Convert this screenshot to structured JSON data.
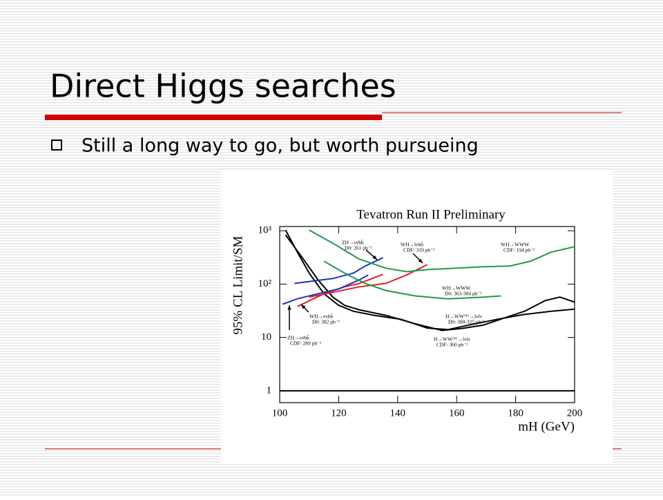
{
  "slide": {
    "title": "Direct Higgs searches",
    "bullet": "Still a long way to go, but worth pursueing"
  },
  "chart_data": {
    "type": "line",
    "title": "Tevatron Run II Preliminary",
    "ylabel": "95% CL Limit/SM",
    "xlabel": "mH (GeV)",
    "log_y": true,
    "xlim": [
      100,
      200
    ],
    "ylim": [
      0.6,
      1200
    ],
    "xticks": [
      100,
      120,
      140,
      160,
      180,
      200
    ],
    "yticks": [
      1,
      10,
      {
        "value": 100,
        "label": "10²"
      },
      {
        "value": 1000,
        "label": "10³"
      }
    ],
    "series": [
      {
        "color": "#000000",
        "annotation": [
          "H→WW⁽*⁾→lνlν",
          "CDF: 360 pb⁻¹"
        ],
        "x": [
          102,
          106,
          110,
          115,
          120,
          125,
          132,
          141,
          150,
          157,
          164,
          174,
          183,
          192,
          200
        ],
        "values": [
          1030,
          396,
          161,
          66,
          40,
          31,
          26,
          22,
          15,
          14,
          17,
          22,
          27,
          31,
          34
        ]
      },
      {
        "color": "#000000",
        "annotation": [
          "H→WW⁽*⁾→lνlν",
          "D0: 300-325 pb⁻¹"
        ],
        "x": [
          102,
          108,
          113,
          118,
          122,
          127,
          136,
          146,
          155,
          162,
          169,
          176,
          183,
          190,
          195,
          200
        ],
        "values": [
          836,
          294,
          120,
          57,
          40,
          33,
          26,
          18,
          13.5,
          14.8,
          17,
          23,
          31,
          49,
          57,
          46
        ]
      },
      {
        "color": "#e02020",
        "annotation": [
          "WH→eνbb̄",
          "D0: 382 pb⁻¹"
        ],
        "x": [
          106,
          115,
          122,
          127,
          135
        ],
        "values": [
          38,
          66,
          89,
          103,
          152
        ]
      },
      {
        "color": "#e02020",
        "annotation": [
          "WH→lνbb̄",
          "CDF: 319 pb⁻¹"
        ],
        "x": [
          110,
          118,
          127,
          136,
          143,
          150
        ],
        "values": [
          57,
          70,
          89,
          103,
          148,
          231
        ]
      },
      {
        "color": "#1f2fc0",
        "annotation": [
          "ZH→νν̄bb̄",
          "CDF: 289 pb⁻¹"
        ],
        "x": [
          101,
          106,
          113,
          120,
          127,
          130
        ],
        "values": [
          42,
          53,
          66,
          81,
          120,
          148
        ]
      },
      {
        "color": "#1f2fc0",
        "annotation": [
          "ZH→νν̄bb̄",
          "D0: 261 pb⁻¹"
        ],
        "x": [
          105,
          118,
          125,
          129,
          135
        ],
        "values": [
          103,
          127,
          161,
          218,
          312
        ]
      },
      {
        "color": "#1a9a4a",
        "annotation": [
          "WH→WWW",
          "CDF: 194 pb⁻¹"
        ],
        "x": [
          110,
          118,
          127,
          136,
          143,
          150,
          160,
          169,
          178,
          185,
          192,
          200
        ],
        "values": [
          1030,
          583,
          294,
          199,
          171,
          187,
          199,
          211,
          218,
          268,
          396,
          503
        ]
      },
      {
        "color": "#1a9a4a",
        "annotation": [
          "WH→WWW",
          "D0: 363-384 pb⁻¹"
        ],
        "x": [
          115,
          122,
          129,
          136,
          146,
          157,
          169,
          175
        ],
        "values": [
          268,
          161,
          103,
          76,
          60,
          53,
          57,
          60
        ]
      },
      {
        "color": "#000000",
        "x": [
          100,
          200
        ],
        "values": [
          1,
          1
        ]
      }
    ]
  }
}
